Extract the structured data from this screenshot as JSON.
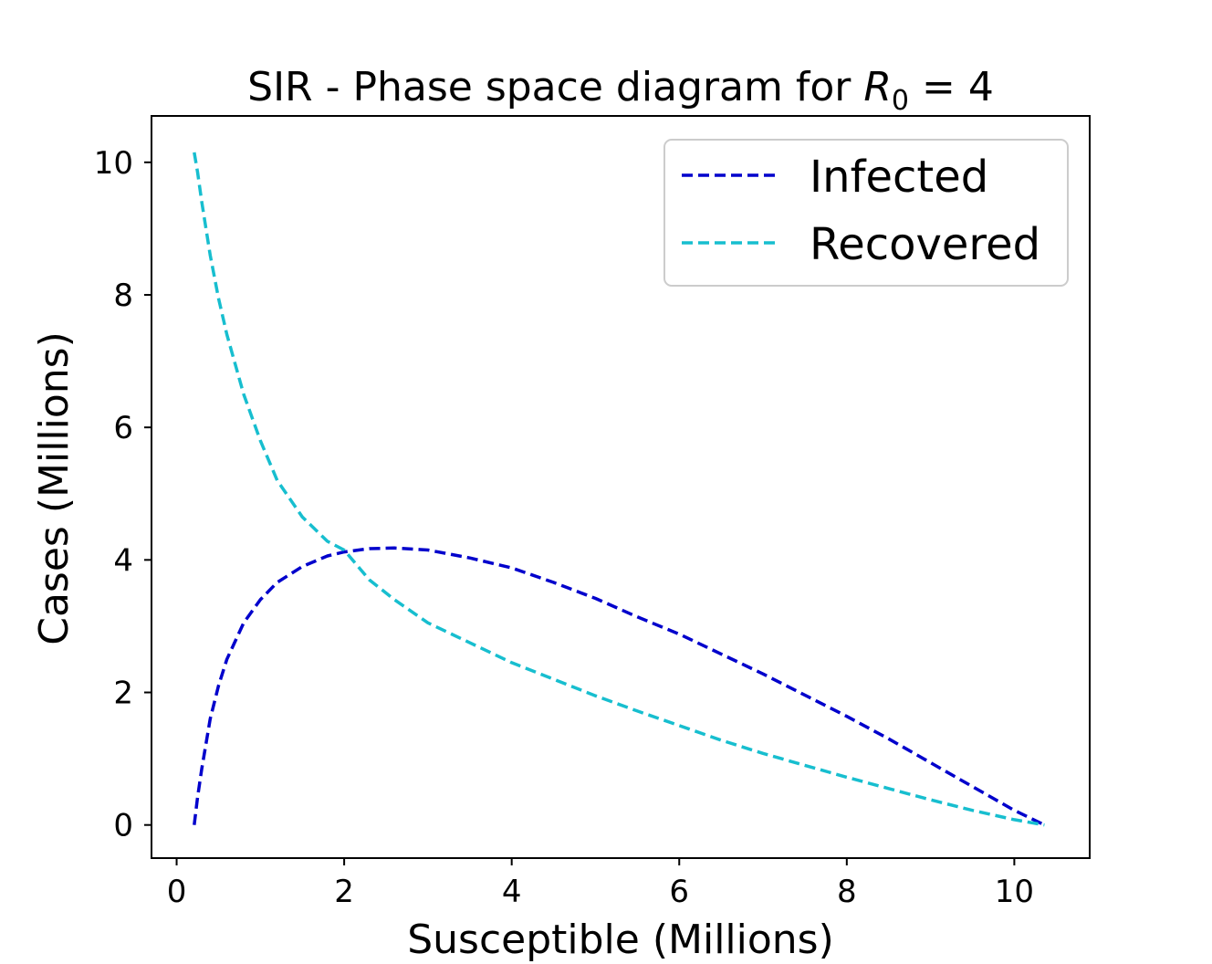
{
  "chart_data": {
    "type": "line",
    "title": {
      "main": "SIR - Phase space diagram for ",
      "symbol": "R",
      "subscript": "0",
      "suffix": " = 4"
    },
    "xlabel": "Susceptible (Millions)",
    "ylabel": "Cases (Millions)",
    "xlim": [
      -0.3,
      10.9
    ],
    "ylim": [
      -0.5,
      10.7
    ],
    "xticks": [
      0,
      2,
      4,
      6,
      8,
      10
    ],
    "yticks": [
      0,
      2,
      4,
      6,
      8,
      10
    ],
    "grid": false,
    "legend_position": "top-right",
    "series": [
      {
        "name": "Infected",
        "color": "#0000cc",
        "style": "dashed",
        "x": [
          0.21,
          0.25,
          0.3,
          0.4,
          0.5,
          0.6,
          0.8,
          1.0,
          1.2,
          1.5,
          1.8,
          2.0,
          2.3,
          2.6,
          3.0,
          3.5,
          4.0,
          4.5,
          5.0,
          5.5,
          6.0,
          6.5,
          7.0,
          7.5,
          8.0,
          8.5,
          9.0,
          9.5,
          10.0,
          10.36
        ],
        "y": [
          0.0,
          0.42,
          0.85,
          1.6,
          2.1,
          2.5,
          3.05,
          3.4,
          3.66,
          3.9,
          4.06,
          4.12,
          4.17,
          4.18,
          4.15,
          4.03,
          3.88,
          3.66,
          3.42,
          3.14,
          2.88,
          2.58,
          2.28,
          1.96,
          1.64,
          1.3,
          0.94,
          0.58,
          0.22,
          0.0
        ]
      },
      {
        "name": "Recovered",
        "color": "#17becf",
        "style": "dashed",
        "x": [
          0.21,
          0.25,
          0.3,
          0.4,
          0.5,
          0.6,
          0.8,
          1.0,
          1.2,
          1.5,
          1.8,
          2.0,
          2.3,
          2.6,
          3.0,
          3.5,
          4.0,
          4.5,
          5.0,
          5.5,
          6.0,
          6.5,
          7.0,
          7.5,
          8.0,
          8.5,
          9.0,
          9.5,
          10.0,
          10.36
        ],
        "y": [
          10.15,
          9.85,
          9.4,
          8.6,
          7.95,
          7.4,
          6.5,
          5.8,
          5.2,
          4.65,
          4.28,
          4.15,
          3.7,
          3.4,
          3.05,
          2.75,
          2.45,
          2.2,
          1.95,
          1.72,
          1.5,
          1.28,
          1.08,
          0.9,
          0.72,
          0.55,
          0.38,
          0.22,
          0.08,
          0.0
        ]
      }
    ]
  }
}
